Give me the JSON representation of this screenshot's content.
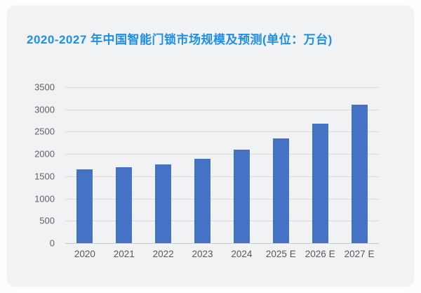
{
  "title": "2020-2027 年中国智能门锁市场规模及预测(单位：万台)",
  "colors": {
    "title_accent": "#1e8fe8",
    "bar_fill": "#4472c4",
    "card_background": "#f1f2f3",
    "page_background": "#fdfdfd",
    "gridline": "#d9d9d9",
    "axis_text": "#5f6368"
  },
  "chart_data": {
    "type": "bar",
    "title": "2020-2027 年中国智能门锁市场规模及预测(单位：万台)",
    "categories": [
      "2020",
      "2021",
      "2022",
      "2023",
      "2024",
      "2025 E",
      "2026 E",
      "2027 E"
    ],
    "values": [
      1650,
      1700,
      1760,
      1900,
      2090,
      2350,
      2680,
      3100
    ],
    "xlabel": "",
    "ylabel": "",
    "ylim": [
      0,
      3500
    ],
    "ytick_step": 500,
    "ytick_labels": [
      "0",
      "500",
      "1000",
      "1500",
      "2000",
      "2500",
      "3000",
      "3500"
    ],
    "grid": true,
    "legend": false
  }
}
